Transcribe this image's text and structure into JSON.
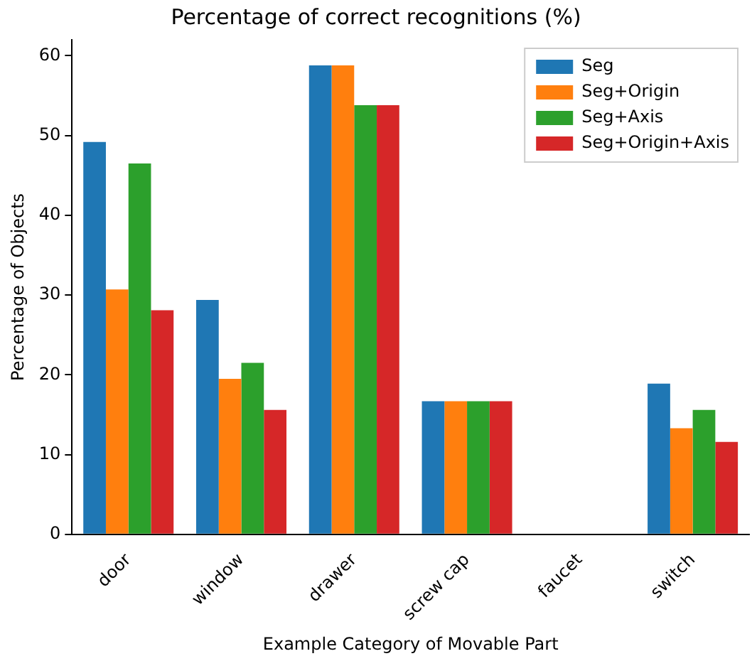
{
  "chart_data": {
    "type": "bar",
    "title": "Percentage of correct recognitions (%)",
    "xlabel": "Example Category of Movable Part",
    "ylabel": "Percentage of Objects",
    "categories": [
      "door",
      "window",
      "drawer",
      "screw cap",
      "faucet",
      "switch"
    ],
    "series": [
      {
        "name": "Seg",
        "color": "#1f77b4",
        "values": [
          49.2,
          29.4,
          58.8,
          16.7,
          0,
          18.9
        ]
      },
      {
        "name": "Seg+Origin",
        "color": "#ff7f0e",
        "values": [
          30.7,
          19.5,
          58.8,
          16.7,
          0,
          13.3
        ]
      },
      {
        "name": "Seg+Axis",
        "color": "#2ca02c",
        "values": [
          46.5,
          21.5,
          53.8,
          16.7,
          0,
          15.6
        ]
      },
      {
        "name": "Seg+Origin+Axis",
        "color": "#d62728",
        "values": [
          28.1,
          15.6,
          53.8,
          16.7,
          0,
          11.6
        ]
      }
    ],
    "ylim": [
      0,
      62
    ],
    "yticks": [
      0,
      10,
      20,
      30,
      40,
      50,
      60
    ],
    "grid": false,
    "legend": "top right"
  }
}
